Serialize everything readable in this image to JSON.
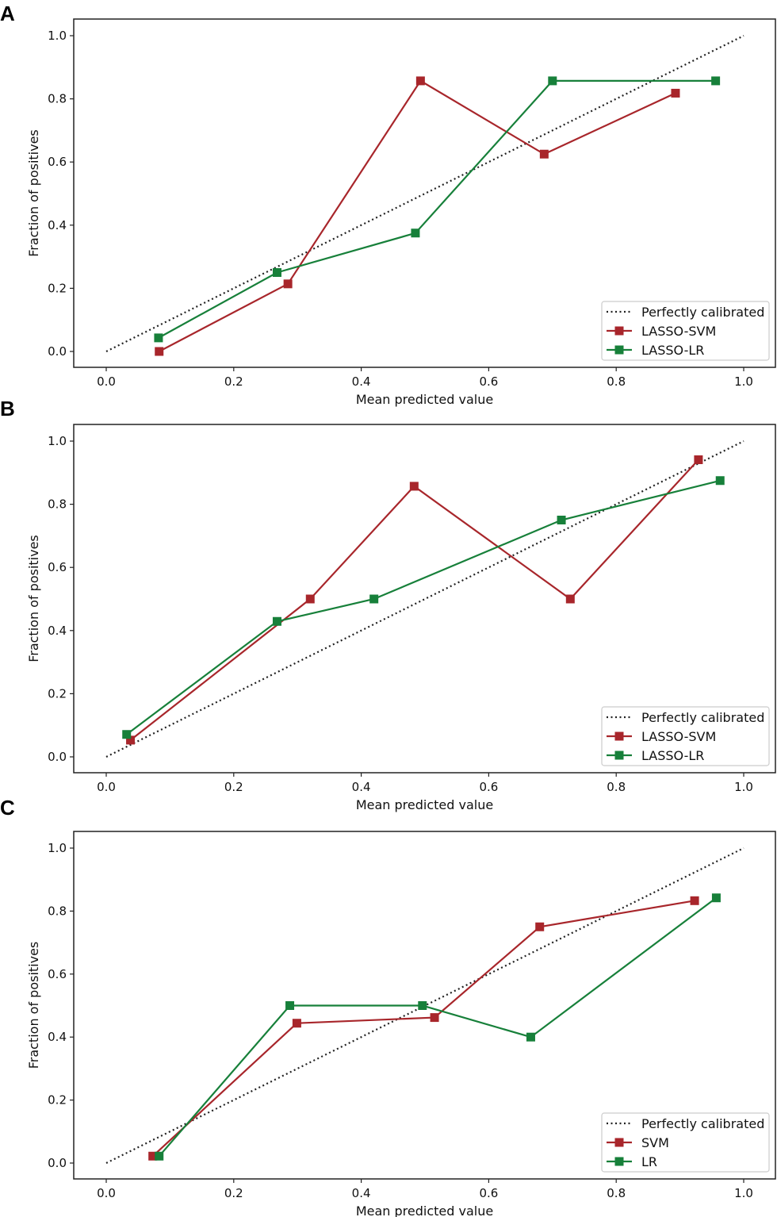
{
  "panels": [
    "A",
    "B",
    "C"
  ],
  "colors": {
    "svm": "#a8262b",
    "lr": "#17803a",
    "diagonal": "#222222",
    "frame": "#222222"
  },
  "chart_data": [
    {
      "panel": "A",
      "type": "line",
      "xlabel": "Mean predicted value",
      "ylabel": "Fraction of positives",
      "xlim": [
        0.0,
        1.0
      ],
      "ylim": [
        0.0,
        1.0
      ],
      "xticks": [
        "0.0",
        "0.2",
        "0.4",
        "0.6",
        "0.8",
        "1.0"
      ],
      "yticks": [
        "0.0",
        "0.2",
        "0.4",
        "0.6",
        "0.8",
        "1.0"
      ],
      "legend_position": "bottom-right",
      "legend": [
        "Perfectly calibrated",
        "LASSO-SVM",
        "LASSO-LR"
      ],
      "reference": {
        "name": "Perfectly calibrated",
        "x": [
          0,
          1
        ],
        "y": [
          0,
          1
        ]
      },
      "series": [
        {
          "name": "LASSO-SVM",
          "color": "#a8262b",
          "x": [
            0.083,
            0.285,
            0.493,
            0.687,
            0.893
          ],
          "y": [
            0.0,
            0.214,
            0.857,
            0.625,
            0.818
          ]
        },
        {
          "name": "LASSO-LR",
          "color": "#17803a",
          "x": [
            0.082,
            0.268,
            0.485,
            0.7,
            0.956
          ],
          "y": [
            0.043,
            0.25,
            0.375,
            0.857,
            0.857
          ]
        }
      ]
    },
    {
      "panel": "B",
      "type": "line",
      "xlabel": "Mean predicted value",
      "ylabel": "Fraction of positives",
      "xlim": [
        0.0,
        1.0
      ],
      "ylim": [
        0.0,
        1.0
      ],
      "xticks": [
        "0.0",
        "0.2",
        "0.4",
        "0.6",
        "0.8",
        "1.0"
      ],
      "yticks": [
        "0.0",
        "0.2",
        "0.4",
        "0.6",
        "0.8",
        "1.0"
      ],
      "legend_position": "bottom-right",
      "legend": [
        "Perfectly calibrated",
        "LASSO-SVM",
        "LASSO-LR"
      ],
      "reference": {
        "name": "Perfectly calibrated",
        "x": [
          0,
          1
        ],
        "y": [
          0,
          1
        ]
      },
      "series": [
        {
          "name": "LASSO-SVM",
          "color": "#a8262b",
          "x": [
            0.038,
            0.32,
            0.483,
            0.728,
            0.929
          ],
          "y": [
            0.053,
            0.5,
            0.857,
            0.5,
            0.941
          ]
        },
        {
          "name": "LASSO-LR",
          "color": "#17803a",
          "x": [
            0.032,
            0.268,
            0.42,
            0.714,
            0.963
          ],
          "y": [
            0.071,
            0.429,
            0.5,
            0.75,
            0.875
          ]
        }
      ]
    },
    {
      "panel": "C",
      "type": "line",
      "xlabel": "Mean predicted value",
      "ylabel": "Fraction of positives",
      "xlim": [
        0.0,
        1.0
      ],
      "ylim": [
        0.0,
        1.0
      ],
      "xticks": [
        "0.0",
        "0.2",
        "0.4",
        "0.6",
        "0.8",
        "1.0"
      ],
      "yticks": [
        "0.0",
        "0.2",
        "0.4",
        "0.6",
        "0.8",
        "1.0"
      ],
      "legend_position": "bottom-right",
      "legend": [
        "Perfectly calibrated",
        "SVM",
        "LR"
      ],
      "reference": {
        "name": "Perfectly calibrated",
        "x": [
          0,
          1
        ],
        "y": [
          0,
          1
        ]
      },
      "series": [
        {
          "name": "SVM",
          "color": "#a8262b",
          "x": [
            0.073,
            0.299,
            0.515,
            0.68,
            0.923
          ],
          "y": [
            0.022,
            0.444,
            0.462,
            0.75,
            0.833
          ]
        },
        {
          "name": "LR",
          "color": "#17803a",
          "x": [
            0.083,
            0.288,
            0.496,
            0.666,
            0.957
          ],
          "y": [
            0.022,
            0.5,
            0.5,
            0.4,
            0.842
          ]
        }
      ]
    }
  ]
}
